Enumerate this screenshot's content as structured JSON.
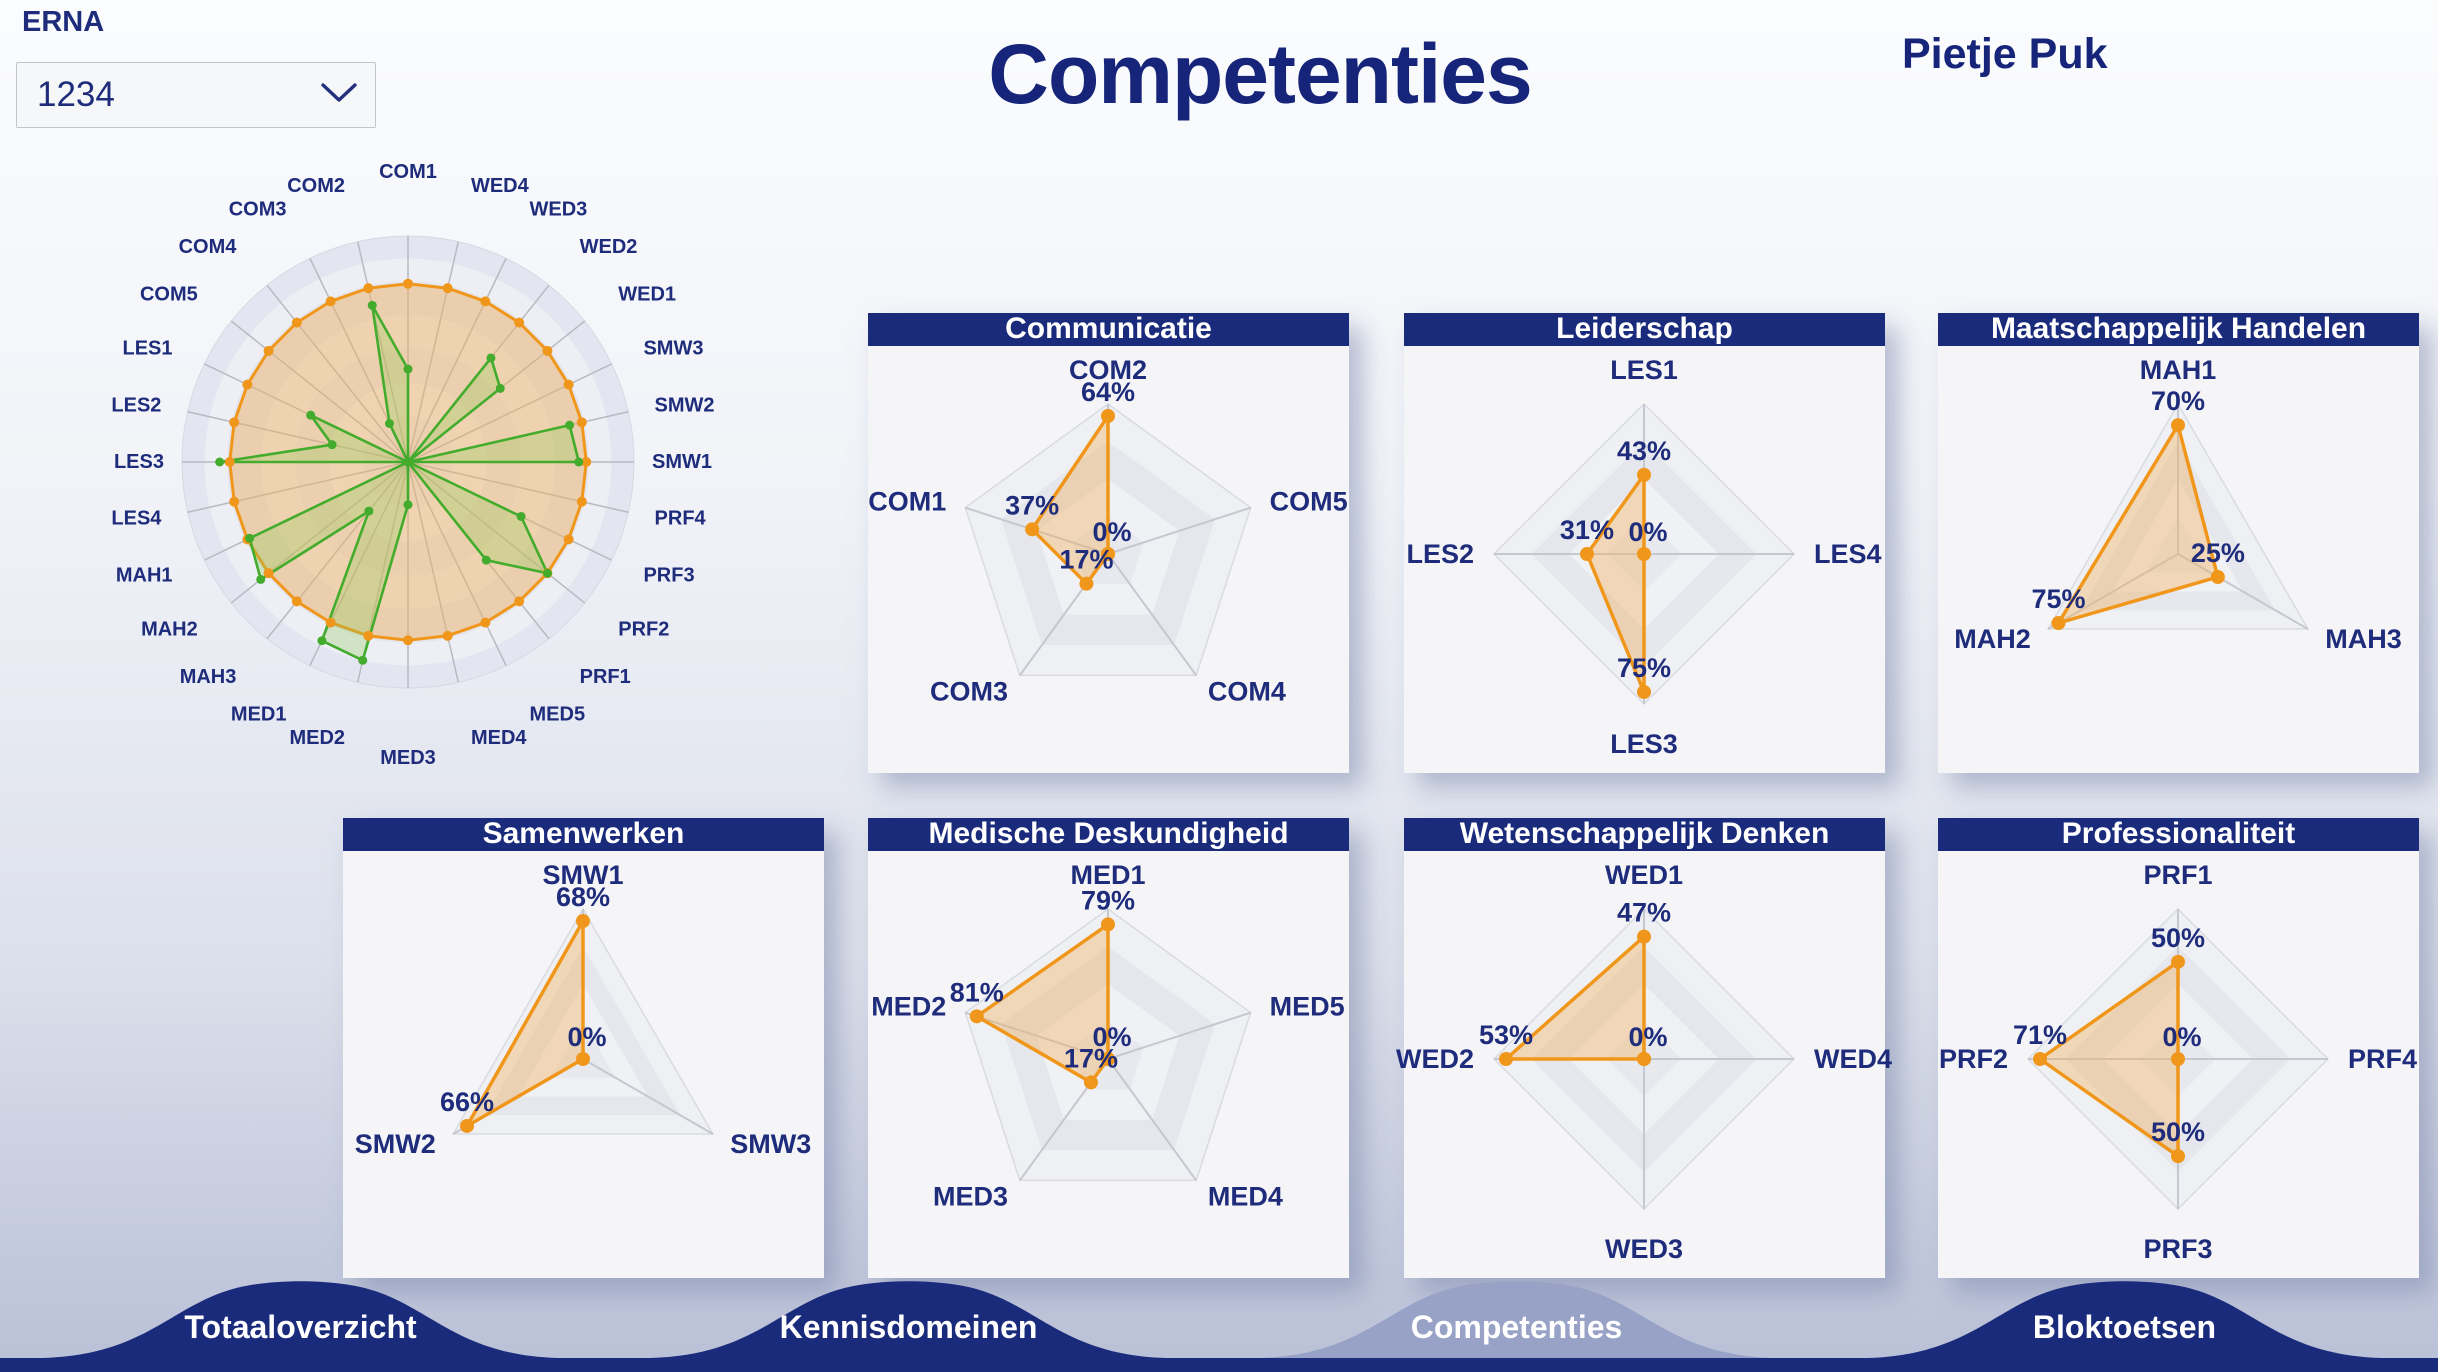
{
  "header": {
    "app_label": "ERNA",
    "title": "Competenties",
    "student_name": "Pietje Puk",
    "cohort_dropdown": {
      "value": "1234",
      "icon": "chevron-down-icon"
    }
  },
  "colors": {
    "navy": "#1E2C7B",
    "title_bar": "#1B2B7C",
    "orange": "#F0971B",
    "orange_fill": "rgba(243,178,92,0.40)",
    "green": "#43AC2C",
    "green_fill": "rgba(141,201,85,0.30)",
    "panel_bg": "#F5F5F7",
    "tab_bg": "#1B2B7C",
    "tab_active_bg": "#97A2C6"
  },
  "chart_data": [
    {
      "id": "overview",
      "type": "radar",
      "axes": [
        "COM1",
        "WED4",
        "WED3",
        "WED2",
        "WED1",
        "SMW3",
        "SMW2",
        "SMW1",
        "PRF4",
        "PRF3",
        "PRF2",
        "PRF1",
        "MED5",
        "MED4",
        "MED3",
        "MED2",
        "MED1",
        "MAH3",
        "MAH2",
        "MAH1",
        "LES4",
        "LES3",
        "LES2",
        "LES1",
        "COM5",
        "COM4",
        "COM3",
        "COM2"
      ],
      "axis_max": 90,
      "grid": "circular",
      "series": [
        {
          "name": "orange-reference",
          "values": [
            71,
            71,
            71,
            71,
            71,
            71,
            71,
            71,
            71,
            71,
            71,
            71,
            71,
            71,
            71,
            71,
            71,
            71,
            71,
            71,
            71,
            71,
            71,
            71,
            71,
            71,
            71,
            71
          ]
        },
        {
          "name": "green-scores",
          "values": [
            37,
            0,
            0,
            53,
            47,
            0,
            66,
            68,
            0,
            50,
            71,
            50,
            0,
            0,
            17,
            81,
            79,
            25,
            75,
            70,
            0,
            75,
            31,
            43,
            0,
            0,
            17,
            64
          ]
        }
      ]
    },
    {
      "id": "communicatie",
      "type": "radar",
      "title": "Communicatie",
      "axes": [
        "COM2",
        "COM5",
        "COM4",
        "COM3",
        "COM1"
      ],
      "values": [
        64,
        0,
        0,
        17,
        37
      ],
      "value_labels": [
        "64%",
        "",
        "",
        "17%",
        "37%"
      ],
      "center_zero_label": "0%"
    },
    {
      "id": "leiderschap",
      "type": "radar",
      "title": "Leiderschap",
      "axes": [
        "LES1",
        "LES4",
        "LES3",
        "LES2"
      ],
      "values": [
        43,
        0,
        75,
        31
      ],
      "value_labels": [
        "43%",
        "",
        "75%",
        "31%"
      ],
      "center_zero_label": "0%"
    },
    {
      "id": "maatschappelijk-handelen",
      "type": "radar",
      "title": "Maatschappelijk Handelen",
      "axes": [
        "MAH1",
        "MAH3",
        "MAH2"
      ],
      "values": [
        70,
        25,
        75
      ],
      "value_labels": [
        "70%",
        "25%",
        "75%"
      ],
      "center_zero_label": ""
    },
    {
      "id": "samenwerken",
      "type": "radar",
      "title": "Samenwerken",
      "axes": [
        "SMW1",
        "SMW3",
        "SMW2"
      ],
      "values": [
        68,
        0,
        66
      ],
      "value_labels": [
        "68%",
        "",
        "66%"
      ],
      "center_zero_label": "0%"
    },
    {
      "id": "medische-deskundigheid",
      "type": "radar",
      "title": "Medische Deskundigheid",
      "axes": [
        "MED1",
        "MED5",
        "MED4",
        "MED3",
        "MED2"
      ],
      "values": [
        79,
        0,
        0,
        17,
        81
      ],
      "value_labels": [
        "79%",
        "",
        "",
        "17%",
        "81%"
      ],
      "center_zero_label": "0%"
    },
    {
      "id": "wetenschappelijk-denken",
      "type": "radar",
      "title": "Wetenschappelijk Denken",
      "axes": [
        "WED1",
        "WED4",
        "WED3",
        "WED2"
      ],
      "values": [
        47,
        0,
        0,
        53
      ],
      "value_labels": [
        "47%",
        "",
        "",
        "53%"
      ],
      "center_zero_label": "0%"
    },
    {
      "id": "professionaliteit",
      "type": "radar",
      "title": "Professionaliteit",
      "axes": [
        "PRF1",
        "PRF4",
        "PRF3",
        "PRF2"
      ],
      "values": [
        50,
        0,
        50,
        71
      ],
      "value_labels": [
        "50%",
        "",
        "50%",
        "71%"
      ],
      "center_zero_label": "0%"
    }
  ],
  "panels": [
    {
      "title": "Communicatie",
      "chart_index": 1
    },
    {
      "title": "Leiderschap",
      "chart_index": 2
    },
    {
      "title": "Maatschappelijk Handelen",
      "chart_index": 3
    },
    {
      "title": "Samenwerken",
      "chart_index": 4
    },
    {
      "title": "Medische Deskundigheid",
      "chart_index": 5
    },
    {
      "title": "Wetenschappelijk Denken",
      "chart_index": 6
    },
    {
      "title": "Professionaliteit",
      "chart_index": 7
    }
  ],
  "nav_tabs": [
    {
      "label": "Totaaloverzicht",
      "active": false
    },
    {
      "label": "Kennisdomeinen",
      "active": false
    },
    {
      "label": "Competenties",
      "active": true
    },
    {
      "label": "Bloktoetsen",
      "active": false
    }
  ]
}
